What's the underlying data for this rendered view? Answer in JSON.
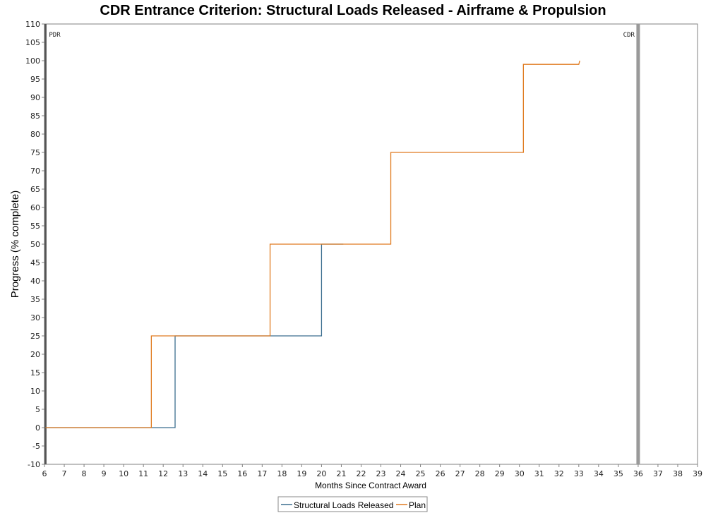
{
  "chart_data": {
    "type": "line",
    "title": "CDR Entrance Criterion: Structural Loads Released - Airframe & Propulsion",
    "xlabel": "Months Since Contract Award",
    "ylabel": "Progress (% complete)",
    "xlim": [
      6,
      39
    ],
    "ylim": [
      -10,
      110
    ],
    "x_ticks": [
      "6",
      "7",
      "8",
      "9",
      "10",
      "11",
      "12",
      "13",
      "14",
      "15",
      "16",
      "17",
      "18",
      "19",
      "20",
      "21",
      "22",
      "23",
      "24",
      "25",
      "26",
      "27",
      "28",
      "29",
      "30",
      "31",
      "32",
      "33",
      "34",
      "35",
      "36",
      "37",
      "38",
      "39"
    ],
    "y_ticks": [
      "-10",
      "-5",
      "0",
      "5",
      "10",
      "15",
      "20",
      "25",
      "30",
      "35",
      "40",
      "45",
      "50",
      "55",
      "60",
      "65",
      "70",
      "75",
      "80",
      "85",
      "90",
      "95",
      "100",
      "105",
      "110"
    ],
    "grid": false,
    "legend_position": "bottom-center",
    "markers": [
      {
        "label": "PDR",
        "x": 6.05,
        "color": "#555555"
      },
      {
        "label": "CDR",
        "x": 36,
        "color": "#999999"
      }
    ],
    "series": [
      {
        "name": "Structural Loads Released",
        "color": "#3b6e8f",
        "points": [
          [
            6.05,
            0
          ],
          [
            12.6,
            0
          ],
          [
            12.6,
            25
          ],
          [
            20,
            25
          ],
          [
            20,
            50
          ],
          [
            21.1,
            50
          ]
        ]
      },
      {
        "name": "Plan",
        "color": "#e07b20",
        "points": [
          [
            6.05,
            0
          ],
          [
            11.4,
            0
          ],
          [
            11.4,
            25
          ],
          [
            17.4,
            25
          ],
          [
            17.4,
            50
          ],
          [
            23.5,
            50
          ],
          [
            23.5,
            75
          ],
          [
            30.2,
            75
          ],
          [
            30.2,
            99
          ],
          [
            33,
            99
          ],
          [
            33.05,
            100
          ]
        ]
      }
    ]
  }
}
